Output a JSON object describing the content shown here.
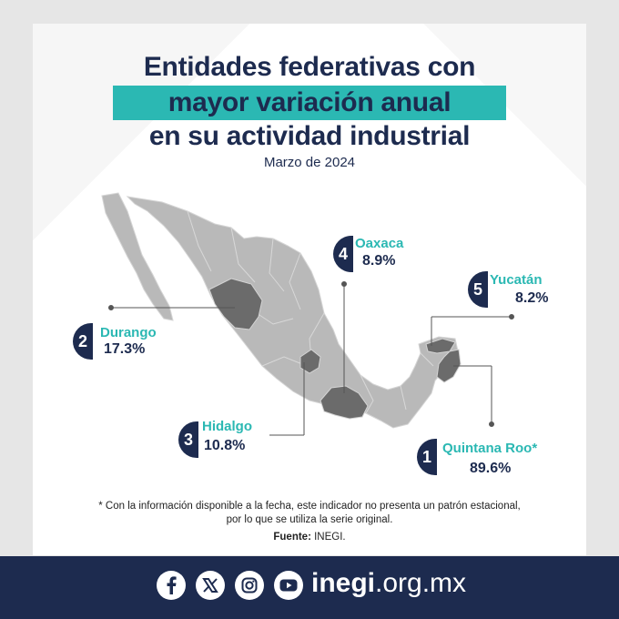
{
  "header": {
    "title_line1": "Entidades federativas con",
    "title_line2": "mayor variación anual",
    "title_line3": "en su actividad industrial",
    "subtitle": "Marzo de 2024"
  },
  "states": [
    {
      "rank": "1",
      "name": "Quintana Roo*",
      "value": "89.6%"
    },
    {
      "rank": "2",
      "name": "Durango",
      "value": "17.3%"
    },
    {
      "rank": "3",
      "name": "Hidalgo",
      "value": "10.8%"
    },
    {
      "rank": "4",
      "name": "Oaxaca",
      "value": "8.9%"
    },
    {
      "rank": "5",
      "name": "Yucatán",
      "value": "8.2%"
    }
  ],
  "footnote": {
    "line1": "* Con la información disponible a la fecha, este indicador no presenta un patrón estacional,",
    "line2": "por lo que se utiliza la serie original.",
    "source_label": "Fuente:",
    "source_value": "INEGI."
  },
  "footer": {
    "site_bold": "inegi",
    "site_rest": ".org.mx",
    "icons": [
      "facebook-icon",
      "x-icon",
      "instagram-icon",
      "youtube-icon"
    ]
  },
  "colors": {
    "navy": "#1d2b4f",
    "teal": "#2bb8b3",
    "map_fill": "#b9b9b9",
    "highlight_fill": "#6b6b6b"
  }
}
